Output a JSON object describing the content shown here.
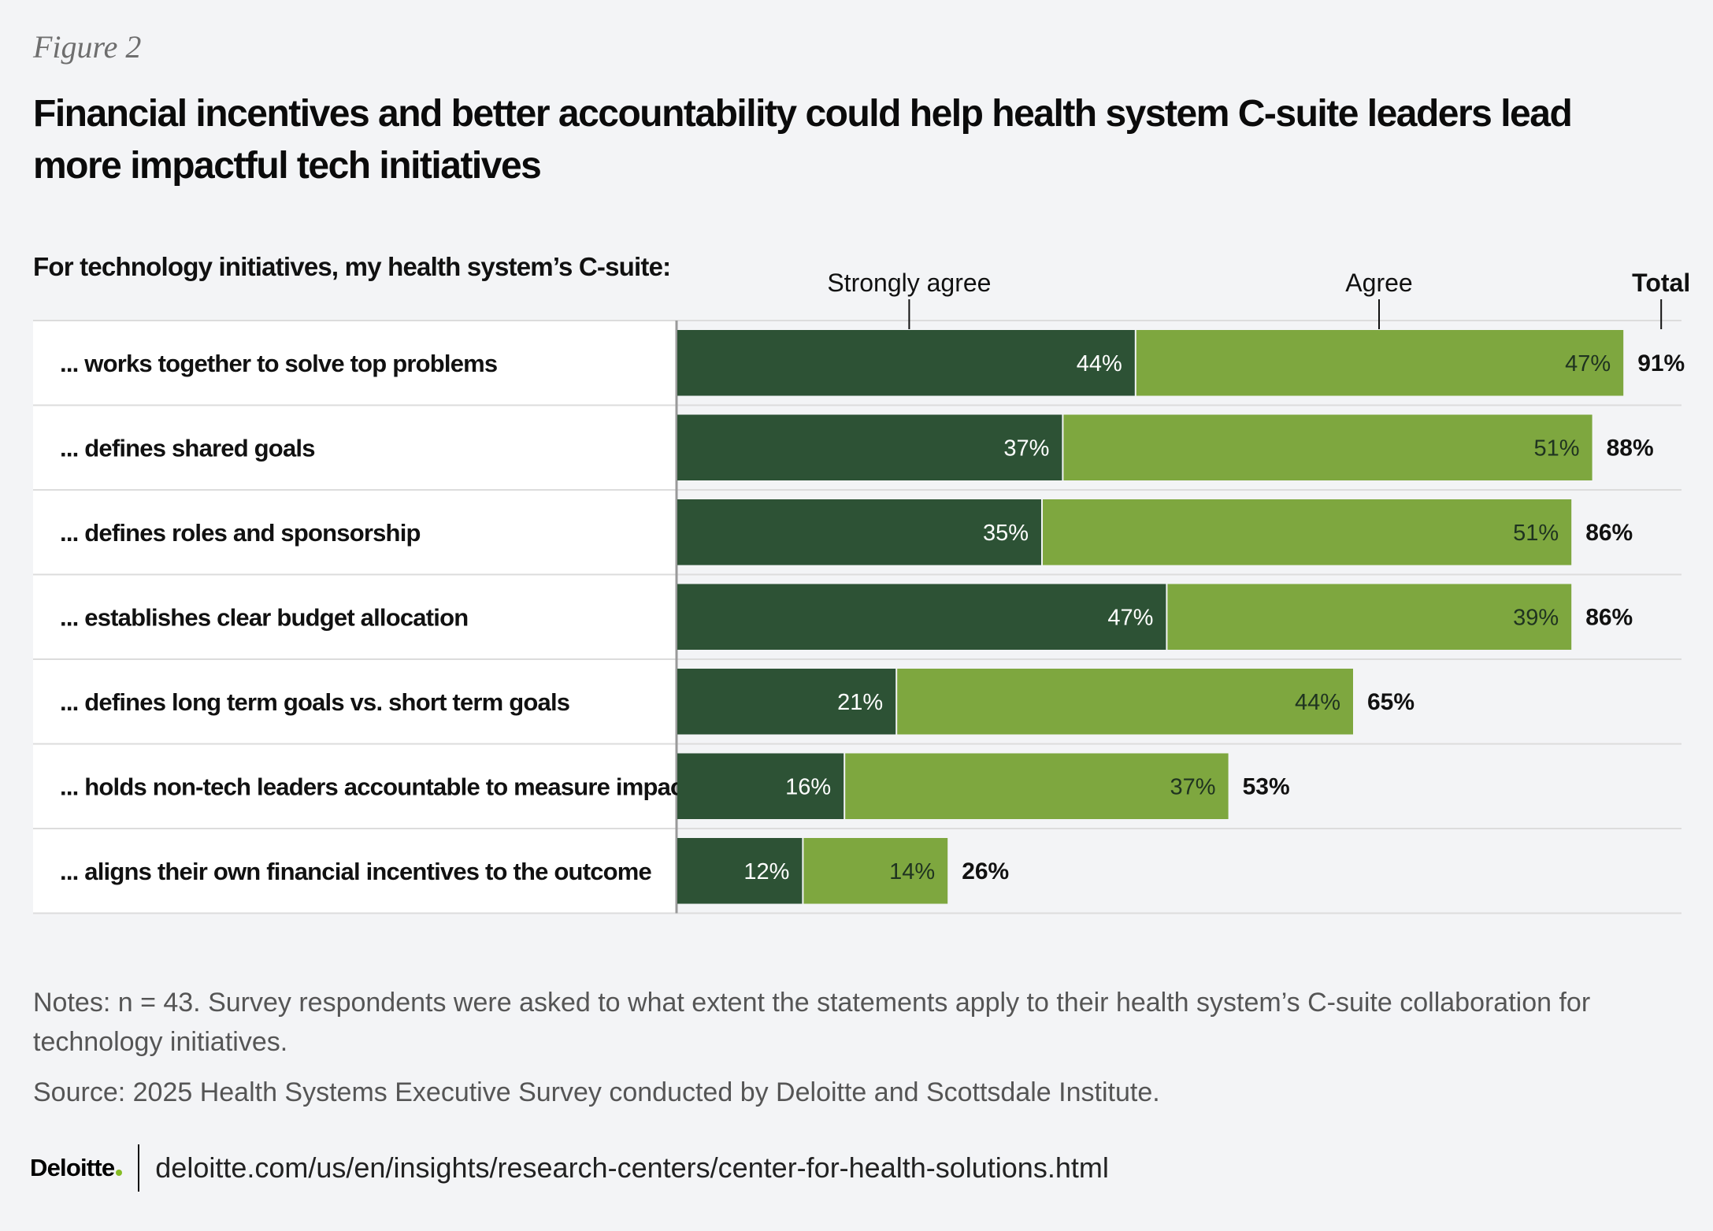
{
  "figure_label": "Figure 2",
  "title": "Financial incentives and better accountability could help health system C-suite leaders lead more impactful tech initiatives",
  "chart_data": {
    "type": "bar",
    "orientation": "horizontal",
    "stacked": true,
    "question": "For technology initiatives, my health system’s C-suite:",
    "categories": [
      "... works together to solve top problems",
      "... defines shared goals",
      "... defines roles and sponsorship",
      "... establishes clear budget allocation",
      "... defines long term goals vs. short term goals",
      "... holds non-tech leaders accountable to measure impact",
      "... aligns their own financial incentives to the outcome"
    ],
    "series": [
      {
        "name": "Strongly agree",
        "values": [
          44,
          37,
          35,
          47,
          21,
          16,
          12
        ],
        "color": "#2d5235"
      },
      {
        "name": "Agree",
        "values": [
          47,
          51,
          51,
          39,
          44,
          37,
          14
        ],
        "color": "#7ea73f"
      }
    ],
    "totals": [
      91,
      88,
      86,
      86,
      65,
      53,
      26
    ],
    "total_label": "Total",
    "value_suffix": "%",
    "xlim": [
      0,
      100
    ]
  },
  "notes": "Notes: n = 43. Survey respondents were asked to what extent the statements apply to their health system’s C-suite collaboration for technology initiatives.",
  "source": "Source: 2025 Health Systems Executive Survey conducted by Deloitte and Scottsdale Institute.",
  "footer": {
    "logo": "Deloitte",
    "url": "deloitte.com/us/en/insights/research-centers/center-for-health-solutions.html"
  }
}
